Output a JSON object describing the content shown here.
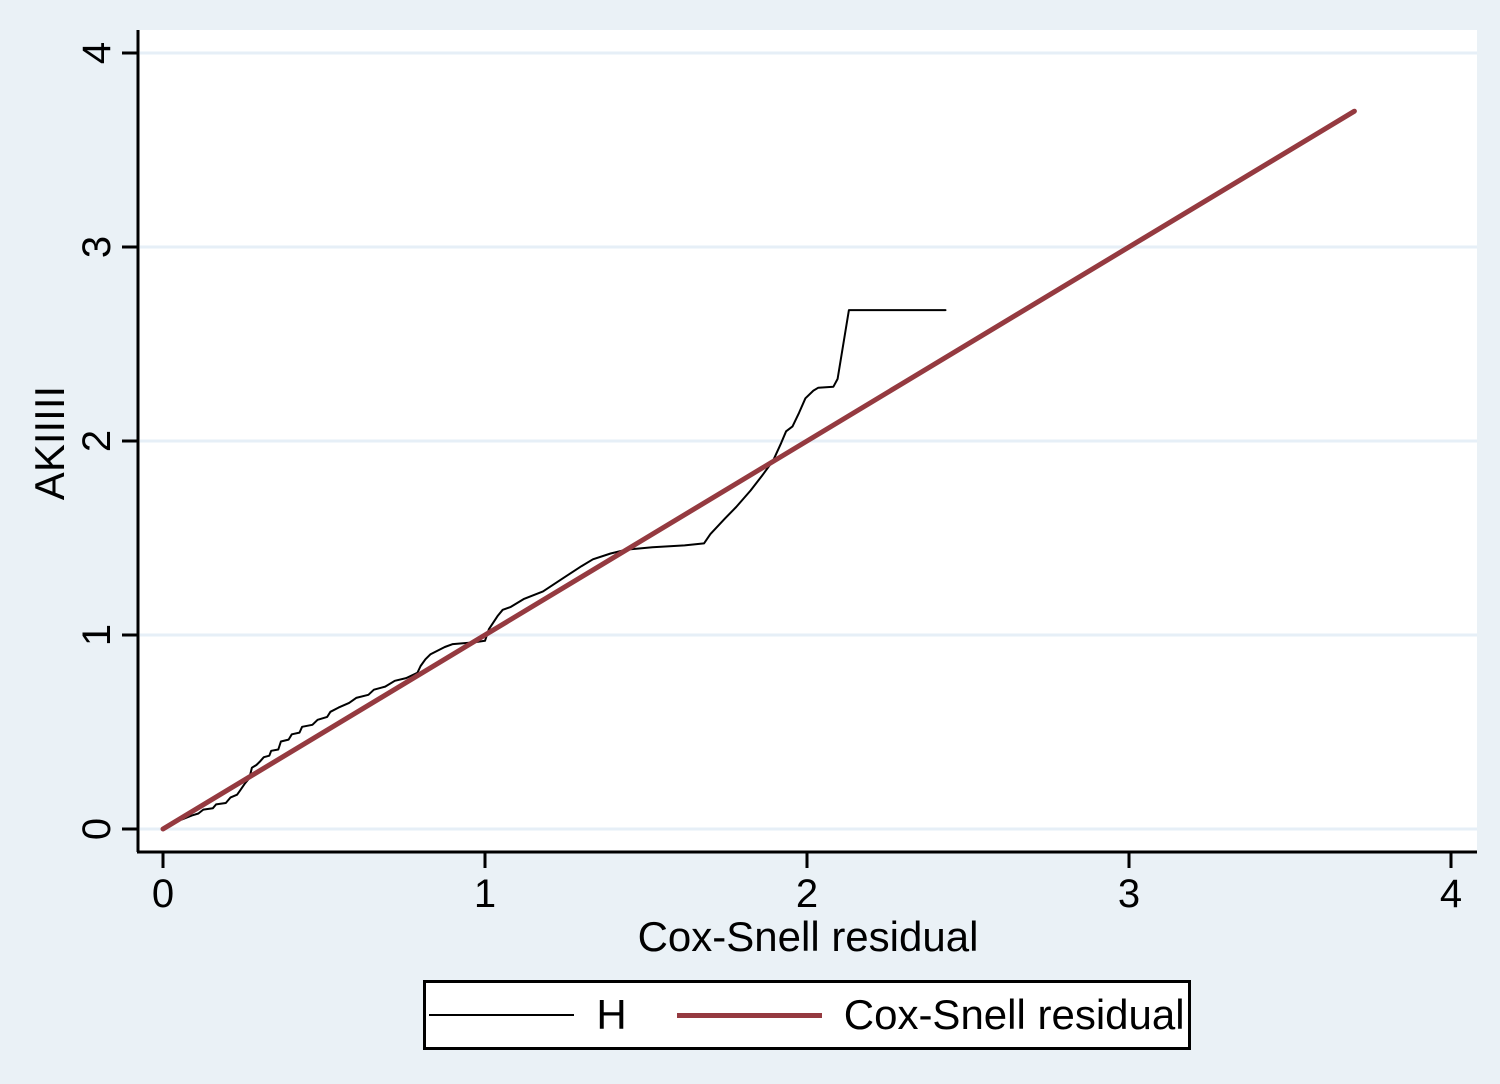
{
  "figure": {
    "background_color": "#eaf1f6",
    "plot_background_color": "#ffffff",
    "gridline_color": "#e6eff7",
    "axis_color": "#000000"
  },
  "chart_data": {
    "type": "line",
    "title": "",
    "xlabel": "Cox-Snell residual",
    "ylabel": "AKIIIII",
    "xlim": [
      0,
      4
    ],
    "ylim": [
      0,
      4
    ],
    "x_ticks": [
      0,
      1,
      2,
      3,
      4
    ],
    "y_ticks": [
      0,
      1,
      2,
      3,
      4
    ],
    "grid": "horizontal",
    "legend_position": "bottom",
    "series": [
      {
        "name": "H",
        "color": "#000000",
        "width": 2,
        "points": [
          [
            0.015,
            0.015
          ],
          [
            0.04,
            0.04
          ],
          [
            0.06,
            0.05
          ],
          [
            0.09,
            0.07
          ],
          [
            0.11,
            0.08
          ],
          [
            0.125,
            0.1
          ],
          [
            0.155,
            0.107
          ],
          [
            0.165,
            0.127
          ],
          [
            0.195,
            0.134
          ],
          [
            0.21,
            0.163
          ],
          [
            0.23,
            0.177
          ],
          [
            0.24,
            0.2
          ],
          [
            0.255,
            0.236
          ],
          [
            0.268,
            0.262
          ],
          [
            0.276,
            0.316
          ],
          [
            0.29,
            0.33
          ],
          [
            0.3,
            0.346
          ],
          [
            0.313,
            0.37
          ],
          [
            0.33,
            0.378
          ],
          [
            0.336,
            0.403
          ],
          [
            0.358,
            0.41
          ],
          [
            0.366,
            0.451
          ],
          [
            0.39,
            0.461
          ],
          [
            0.4,
            0.488
          ],
          [
            0.424,
            0.497
          ],
          [
            0.432,
            0.527
          ],
          [
            0.464,
            0.537
          ],
          [
            0.48,
            0.563
          ],
          [
            0.51,
            0.578
          ],
          [
            0.52,
            0.604
          ],
          [
            0.545,
            0.626
          ],
          [
            0.578,
            0.65
          ],
          [
            0.6,
            0.676
          ],
          [
            0.638,
            0.692
          ],
          [
            0.655,
            0.718
          ],
          [
            0.69,
            0.734
          ],
          [
            0.72,
            0.764
          ],
          [
            0.755,
            0.778
          ],
          [
            0.79,
            0.805
          ],
          [
            0.8,
            0.84
          ],
          [
            0.815,
            0.875
          ],
          [
            0.83,
            0.9
          ],
          [
            0.875,
            0.938
          ],
          [
            0.9,
            0.953
          ],
          [
            0.965,
            0.962
          ],
          [
            1.0,
            0.97
          ],
          [
            1.012,
            1.03
          ],
          [
            1.04,
            1.1
          ],
          [
            1.055,
            1.13
          ],
          [
            1.08,
            1.145
          ],
          [
            1.12,
            1.185
          ],
          [
            1.18,
            1.225
          ],
          [
            1.24,
            1.29
          ],
          [
            1.3,
            1.355
          ],
          [
            1.335,
            1.39
          ],
          [
            1.39,
            1.42
          ],
          [
            1.44,
            1.44
          ],
          [
            1.52,
            1.452
          ],
          [
            1.62,
            1.462
          ],
          [
            1.68,
            1.472
          ],
          [
            1.7,
            1.52
          ],
          [
            1.745,
            1.6
          ],
          [
            1.78,
            1.66
          ],
          [
            1.825,
            1.745
          ],
          [
            1.86,
            1.82
          ],
          [
            1.895,
            1.9
          ],
          [
            1.92,
            1.99
          ],
          [
            1.935,
            2.05
          ],
          [
            1.955,
            2.075
          ],
          [
            1.975,
            2.145
          ],
          [
            1.995,
            2.22
          ],
          [
            2.02,
            2.26
          ],
          [
            2.035,
            2.275
          ],
          [
            2.082,
            2.28
          ],
          [
            2.095,
            2.32
          ],
          [
            2.13,
            2.675
          ],
          [
            2.43,
            2.675
          ]
        ]
      },
      {
        "name": "Cox-Snell residual",
        "color": "#953a40",
        "width": 5,
        "points": [
          [
            0.0,
            0.0
          ],
          [
            3.7,
            3.7
          ]
        ]
      }
    ]
  },
  "legend": {
    "items": [
      {
        "label": "H"
      },
      {
        "label": "Cox-Snell residual"
      }
    ]
  }
}
